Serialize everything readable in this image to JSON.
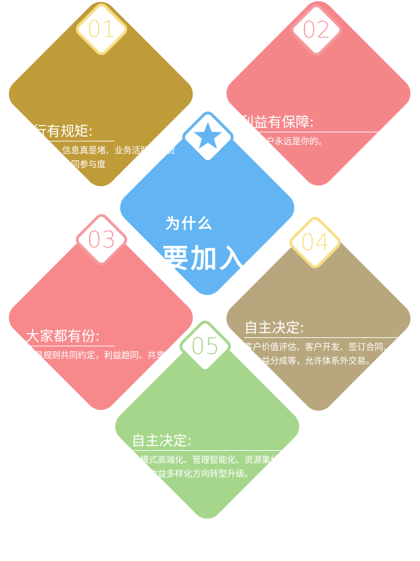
{
  "colors": {
    "gold": "#c09b3a",
    "pink": "#f4868a",
    "blue": "#62b4f2",
    "salmon": "#f7898c",
    "tan": "#b8a77e",
    "green": "#a6d68c",
    "badge_yellow": "#f8de86",
    "badge_pink": "#f59aa0",
    "badge_blue": "#62b4f2",
    "badge_green": "#a6d68c"
  },
  "center": {
    "line1": "为什么",
    "line2": "要加入"
  },
  "badges": {
    "b01": "01",
    "b02": "02",
    "b03": "03",
    "b04": "04",
    "b05": "05",
    "star_icon": "star-icon"
  },
  "items": {
    "item1": {
      "title": "运行有规矩:",
      "desc": "考核评价：信息真是堵、业务活跃度、货源贡献度、共同参与度"
    },
    "item2": {
      "title": "利益有保障:",
      "desc": "你的客户永远是你的。"
    },
    "item3": {
      "title": "大家都有份:",
      "desc": "交易规则共同约定，利益趋同、共享共治。"
    },
    "item4": {
      "title": "自主决定:",
      "desc": "客户价值评估、客户开发、签订合同、协作收益分成等，允许体系外交易。"
    },
    "item5": {
      "title": "自主决定:",
      "desc": "向模式高端化、管理智能化、资源集约化、收益多样化方向转型升级。"
    }
  }
}
